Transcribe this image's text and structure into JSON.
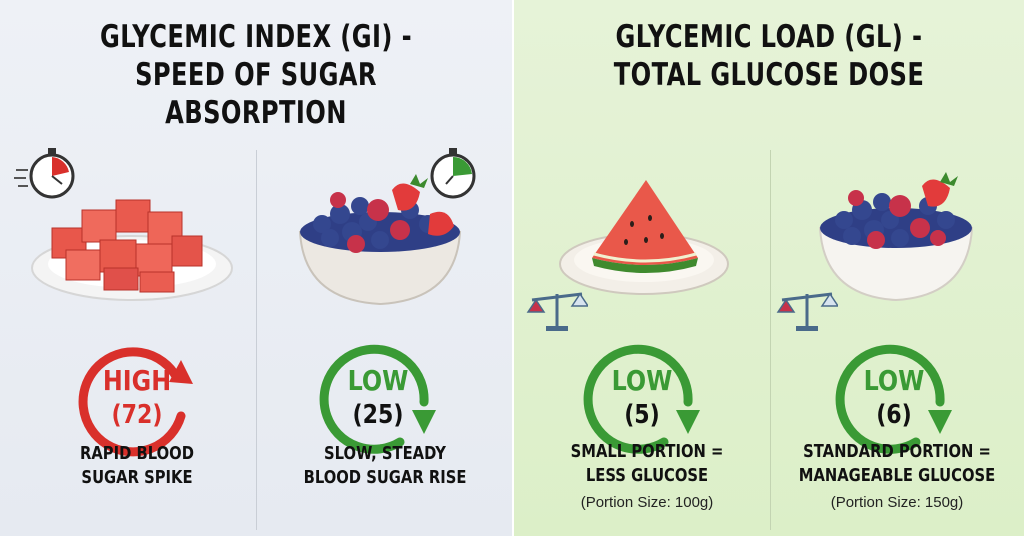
{
  "left_panel": {
    "title_line1": "GLYCEMIC INDEX (GI) -",
    "title_line2": "SPEED OF SUGAR ABSORPTION",
    "items": [
      {
        "food": "watermelon",
        "level": "HIGH",
        "value": "(72)",
        "desc_line1": "RAPID BLOOD",
        "desc_line2": "SUGAR SPIKE",
        "color": "#d9302b",
        "icon": "stopwatch-fast-icon"
      },
      {
        "food": "mixed berries",
        "level": "LOW",
        "value": "(25)",
        "desc_line1": "SLOW, STEADY",
        "desc_line2": "BLOOD SUGAR RISE",
        "color": "#3a9a35",
        "icon": "stopwatch-slow-icon"
      }
    ]
  },
  "right_panel": {
    "title_line1": "GLYCEMIC LOAD (GL) -",
    "title_line2": "TOTAL GLUCOSE DOSE",
    "items": [
      {
        "food": "watermelon slice",
        "level": "LOW",
        "value": "(5)",
        "desc_line1": "SMALL PORTION =",
        "desc_line2": "LESS GLUCOSE",
        "note": "(Portion Size: 100g)",
        "color": "#3a9a35",
        "icon": "balance-scale-icon"
      },
      {
        "food": "mixed berries",
        "level": "LOW",
        "value": "(6)",
        "desc_line1": "STANDARD PORTION =",
        "desc_line2": "MANAGEABLE GLUCOSE",
        "note": "(Portion Size: 150g)",
        "color": "#3a9a35",
        "icon": "balance-scale-icon"
      }
    ]
  },
  "colors": {
    "high": "#d9302b",
    "low": "#3a9a35"
  }
}
